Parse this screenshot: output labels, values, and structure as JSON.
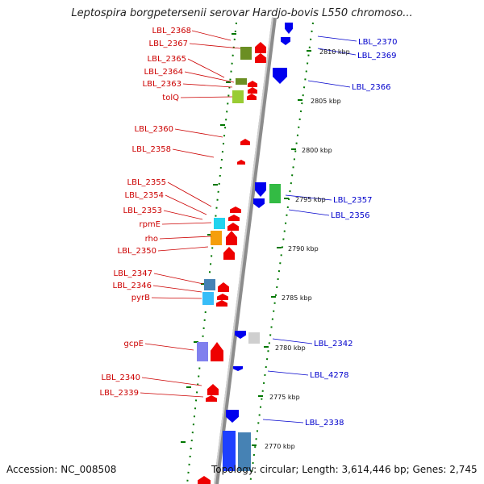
{
  "title": "Leptospira borgpetersenii serovar Hardjo-bovis L550 chromoso...",
  "footer": {
    "accession": "Accession: NC_008508",
    "topology": "Topology: circular; Length: 3,614,446 bp; Genes: 2,745"
  },
  "colors": {
    "forward": "#ee0000",
    "reverse": "#0000ee",
    "backbone": "#999999",
    "tick": "#007700"
  },
  "kbp_labels": [
    "2810 kbp",
    "2805 kbp",
    "2800 kbp",
    "2795 kbp",
    "2790 kbp",
    "2785 kbp",
    "2780 kbp",
    "2775 kbp",
    "2770 kbp"
  ],
  "left_labels": [
    "LBL_2368",
    "LBL_2367",
    "LBL_2365",
    "LBL_2364",
    "LBL_2363",
    "tolQ",
    "LBL_2360",
    "LBL_2358",
    "LBL_2355",
    "LBL_2354",
    "LBL_2353",
    "rpmE",
    "rho",
    "LBL_2350",
    "LBL_2347",
    "LBL_2346",
    "pyrB",
    "gcpE",
    "LBL_2340",
    "LBL_2339"
  ],
  "right_labels": [
    "LBL_2370",
    "LBL_2369",
    "LBL_2366",
    "LBL_2357",
    "LBL_2356",
    "LBL_2342",
    "LBL_4278",
    "LBL_2338"
  ]
}
